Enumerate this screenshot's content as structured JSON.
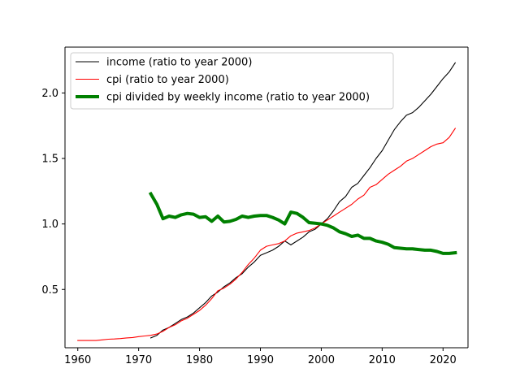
{
  "chart_data": {
    "type": "line",
    "title": "",
    "xlabel": "",
    "ylabel": "",
    "xlim": [
      1957.9,
      2024.1
    ],
    "ylim": [
      0.055,
      2.35
    ],
    "x_ticks": [
      1960,
      1970,
      1980,
      1990,
      2000,
      2010,
      2020
    ],
    "y_ticks": [
      0.5,
      1.0,
      1.5,
      2.0
    ],
    "x_tick_labels": [
      "1960",
      "1970",
      "1980",
      "1990",
      "2000",
      "2010",
      "2020"
    ],
    "y_tick_labels": [
      "0.5",
      "1.0",
      "1.5",
      "2.0"
    ],
    "grid": false,
    "legend_position": "upper-left",
    "series": [
      {
        "name": "income (ratio to year 2000)",
        "color": "#000000",
        "line_weight": "thin",
        "x": [
          1972,
          1973,
          1974,
          1975,
          1976,
          1977,
          1978,
          1979,
          1980,
          1981,
          1982,
          1983,
          1984,
          1985,
          1986,
          1987,
          1988,
          1989,
          1990,
          1991,
          1992,
          1993,
          1994,
          1995,
          1996,
          1997,
          1998,
          1999,
          2000,
          2001,
          2002,
          2003,
          2004,
          2005,
          2006,
          2007,
          2008,
          2009,
          2010,
          2011,
          2012,
          2013,
          2014,
          2015,
          2016,
          2017,
          2018,
          2019,
          2020,
          2021,
          2022
        ],
        "y": [
          0.13,
          0.15,
          0.19,
          0.21,
          0.24,
          0.27,
          0.29,
          0.32,
          0.36,
          0.4,
          0.45,
          0.48,
          0.52,
          0.55,
          0.59,
          0.62,
          0.67,
          0.71,
          0.76,
          0.78,
          0.8,
          0.83,
          0.87,
          0.84,
          0.87,
          0.9,
          0.94,
          0.96,
          1.0,
          1.04,
          1.1,
          1.17,
          1.21,
          1.28,
          1.31,
          1.37,
          1.43,
          1.5,
          1.56,
          1.64,
          1.72,
          1.78,
          1.83,
          1.85,
          1.89,
          1.94,
          1.99,
          2.05,
          2.11,
          2.16,
          2.23
        ]
      },
      {
        "name": "cpi (ratio to year 2000)",
        "color": "#ff0000",
        "line_weight": "thin",
        "x": [
          1960,
          1961,
          1962,
          1963,
          1964,
          1965,
          1966,
          1967,
          1968,
          1969,
          1970,
          1971,
          1972,
          1973,
          1974,
          1975,
          1976,
          1977,
          1978,
          1979,
          1980,
          1981,
          1982,
          1983,
          1984,
          1985,
          1986,
          1987,
          1988,
          1989,
          1990,
          1991,
          1992,
          1993,
          1994,
          1995,
          1996,
          1997,
          1998,
          1999,
          2000,
          2001,
          2002,
          2003,
          2004,
          2005,
          2006,
          2007,
          2008,
          2009,
          2010,
          2011,
          2012,
          2013,
          2014,
          2015,
          2016,
          2017,
          2018,
          2019,
          2020,
          2021,
          2022
        ],
        "y": [
          0.11,
          0.11,
          0.11,
          0.11,
          0.115,
          0.12,
          0.122,
          0.125,
          0.13,
          0.133,
          0.14,
          0.145,
          0.15,
          0.16,
          0.18,
          0.21,
          0.23,
          0.26,
          0.28,
          0.31,
          0.34,
          0.38,
          0.43,
          0.49,
          0.51,
          0.54,
          0.58,
          0.63,
          0.69,
          0.74,
          0.8,
          0.83,
          0.84,
          0.85,
          0.87,
          0.91,
          0.93,
          0.94,
          0.95,
          0.97,
          1.0,
          1.03,
          1.06,
          1.09,
          1.12,
          1.15,
          1.19,
          1.22,
          1.28,
          1.3,
          1.34,
          1.38,
          1.41,
          1.44,
          1.48,
          1.5,
          1.53,
          1.56,
          1.59,
          1.61,
          1.62,
          1.66,
          1.73
        ]
      },
      {
        "name": "cpi divided by weekly income (ratio to year 2000)",
        "color": "#008000",
        "line_weight": "thick",
        "x": [
          1972,
          1973,
          1974,
          1975,
          1976,
          1977,
          1978,
          1979,
          1980,
          1981,
          1982,
          1983,
          1984,
          1985,
          1986,
          1987,
          1988,
          1989,
          1990,
          1991,
          1992,
          1993,
          1994,
          1995,
          1996,
          1997,
          1998,
          1999,
          2000,
          2001,
          2002,
          2003,
          2004,
          2005,
          2006,
          2007,
          2008,
          2009,
          2010,
          2011,
          2012,
          2013,
          2014,
          2015,
          2016,
          2017,
          2018,
          2019,
          2020,
          2021,
          2022
        ],
        "y": [
          1.23,
          1.15,
          1.04,
          1.06,
          1.05,
          1.07,
          1.08,
          1.075,
          1.05,
          1.055,
          1.02,
          1.06,
          1.015,
          1.02,
          1.035,
          1.06,
          1.05,
          1.06,
          1.065,
          1.065,
          1.05,
          1.03,
          1.0,
          1.09,
          1.08,
          1.05,
          1.01,
          1.005,
          1.0,
          0.99,
          0.97,
          0.94,
          0.925,
          0.905,
          0.915,
          0.89,
          0.89,
          0.87,
          0.86,
          0.845,
          0.82,
          0.815,
          0.81,
          0.81,
          0.805,
          0.8,
          0.8,
          0.79,
          0.775,
          0.775,
          0.78
        ]
      }
    ]
  }
}
